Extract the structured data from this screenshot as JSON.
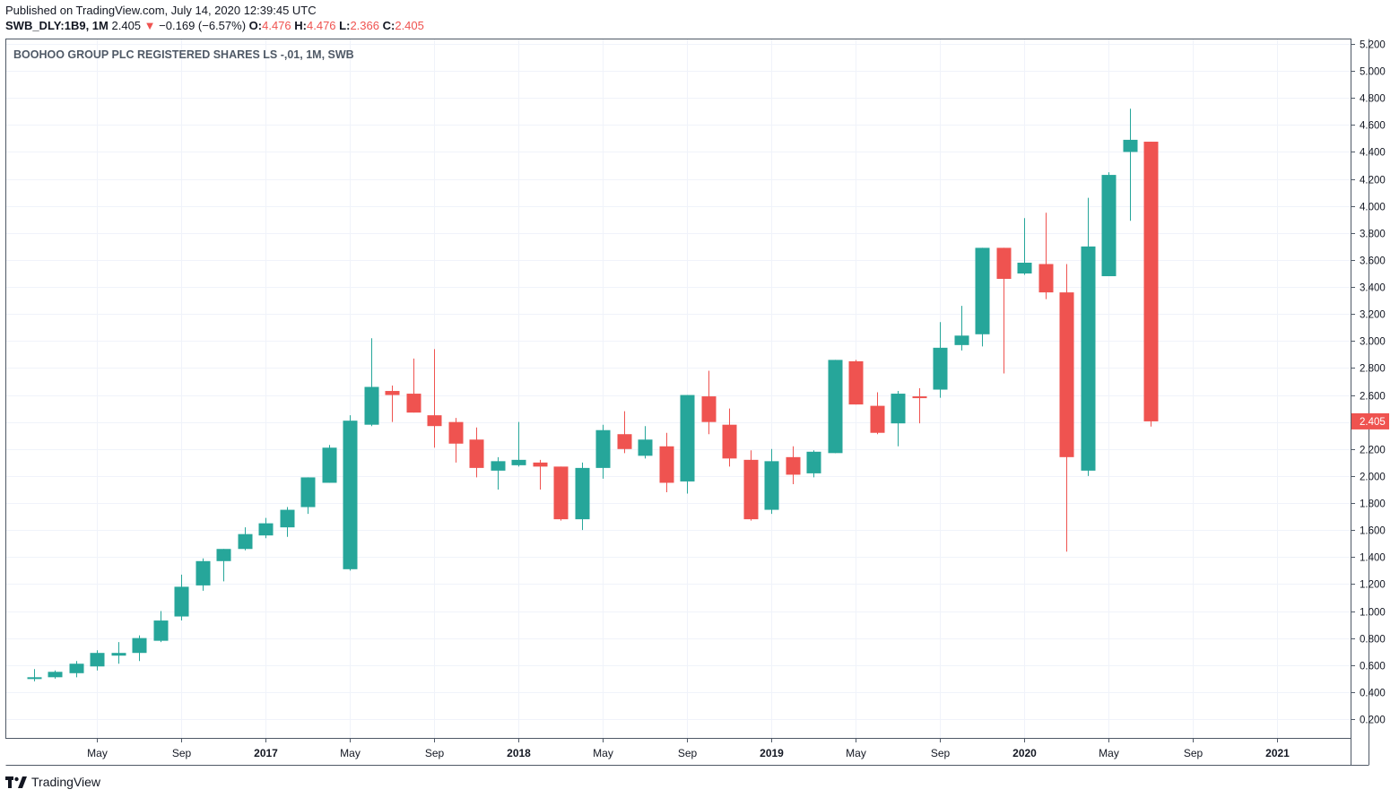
{
  "header": {
    "published": "Published on TradingView.com, July 14, 2020 12:39:45 UTC",
    "symbol": "SWB_DLY:1B9, 1M",
    "last": "2.405",
    "change": "−0.169 (−6.57%)",
    "o_label": "O:",
    "o_value": "4.476",
    "h_label": "H:",
    "h_value": "4.476",
    "l_label": "L:",
    "l_value": "2.366",
    "c_label": "C:",
    "c_value": "2.405"
  },
  "footer": {
    "brand": "TradingView"
  },
  "colors": {
    "up": "#26a69a",
    "down": "#ef5350",
    "grid": "#f0f3fa",
    "axis": "#4f5966"
  },
  "chart_data": {
    "type": "candlestick",
    "title": "BOOHOO GROUP PLC REGISTERED SHARES LS -,01, 1M, SWB",
    "ylim": [
      0,
      5.3
    ],
    "y_ticks": [
      "0.200",
      "0.400",
      "0.600",
      "0.800",
      "1.000",
      "1.200",
      "1.400",
      "1.600",
      "1.800",
      "2.000",
      "2.200",
      "2.400",
      "2.600",
      "2.800",
      "3.000",
      "3.200",
      "3.400",
      "3.600",
      "3.800",
      "4.000",
      "4.200",
      "4.400",
      "4.600",
      "4.800",
      "5.000",
      "5.200"
    ],
    "last_price_label": "2.405",
    "x_ticks": [
      {
        "label": "May",
        "month": "2016-05",
        "bold": false
      },
      {
        "label": "Sep",
        "month": "2016-09",
        "bold": false
      },
      {
        "label": "2017",
        "month": "2017-01",
        "bold": true
      },
      {
        "label": "May",
        "month": "2017-05",
        "bold": false
      },
      {
        "label": "Sep",
        "month": "2017-09",
        "bold": false
      },
      {
        "label": "2018",
        "month": "2018-01",
        "bold": true
      },
      {
        "label": "May",
        "month": "2018-05",
        "bold": false
      },
      {
        "label": "Sep",
        "month": "2018-09",
        "bold": false
      },
      {
        "label": "2019",
        "month": "2019-01",
        "bold": true
      },
      {
        "label": "May",
        "month": "2019-05",
        "bold": false
      },
      {
        "label": "Sep",
        "month": "2019-09",
        "bold": false
      },
      {
        "label": "2020",
        "month": "2020-01",
        "bold": true
      },
      {
        "label": "May",
        "month": "2020-05",
        "bold": false
      },
      {
        "label": "Sep",
        "month": "2020-09",
        "bold": false
      },
      {
        "label": "2021",
        "month": "2021-01",
        "bold": true
      }
    ],
    "x_range": [
      "2016-01",
      "2021-05"
    ],
    "candles": [
      {
        "month": "2016-02",
        "o": 0.5,
        "h": 0.57,
        "l": 0.48,
        "c": 0.51
      },
      {
        "month": "2016-03",
        "o": 0.51,
        "h": 0.56,
        "l": 0.5,
        "c": 0.55
      },
      {
        "month": "2016-04",
        "o": 0.54,
        "h": 0.63,
        "l": 0.51,
        "c": 0.61
      },
      {
        "month": "2016-05",
        "o": 0.59,
        "h": 0.71,
        "l": 0.56,
        "c": 0.69
      },
      {
        "month": "2016-06",
        "o": 0.67,
        "h": 0.77,
        "l": 0.61,
        "c": 0.69
      },
      {
        "month": "2016-07",
        "o": 0.69,
        "h": 0.82,
        "l": 0.63,
        "c": 0.8
      },
      {
        "month": "2016-08",
        "o": 0.78,
        "h": 1.0,
        "l": 0.77,
        "c": 0.93
      },
      {
        "month": "2016-09",
        "o": 0.96,
        "h": 1.27,
        "l": 0.93,
        "c": 1.18
      },
      {
        "month": "2016-10",
        "o": 1.19,
        "h": 1.39,
        "l": 1.15,
        "c": 1.37
      },
      {
        "month": "2016-11",
        "o": 1.37,
        "h": 1.46,
        "l": 1.22,
        "c": 1.46
      },
      {
        "month": "2016-12",
        "o": 1.46,
        "h": 1.62,
        "l": 1.45,
        "c": 1.57
      },
      {
        "month": "2017-01",
        "o": 1.56,
        "h": 1.69,
        "l": 1.54,
        "c": 1.65
      },
      {
        "month": "2017-02",
        "o": 1.62,
        "h": 1.77,
        "l": 1.55,
        "c": 1.75
      },
      {
        "month": "2017-03",
        "o": 1.77,
        "h": 1.99,
        "l": 1.72,
        "c": 1.99
      },
      {
        "month": "2017-04",
        "o": 1.95,
        "h": 2.23,
        "l": 1.95,
        "c": 2.21
      },
      {
        "month": "2017-05",
        "o": 1.31,
        "h": 2.45,
        "l": 1.3,
        "c": 2.41
      },
      {
        "month": "2017-06",
        "o": 2.38,
        "h": 3.02,
        "l": 2.37,
        "c": 2.66
      },
      {
        "month": "2017-07",
        "o": 2.63,
        "h": 2.67,
        "l": 2.4,
        "c": 2.6
      },
      {
        "month": "2017-08",
        "o": 2.61,
        "h": 2.87,
        "l": 2.47,
        "c": 2.47
      },
      {
        "month": "2017-09",
        "o": 2.45,
        "h": 2.94,
        "l": 2.21,
        "c": 2.37
      },
      {
        "month": "2017-10",
        "o": 2.4,
        "h": 2.43,
        "l": 2.1,
        "c": 2.24
      },
      {
        "month": "2017-11",
        "o": 2.27,
        "h": 2.36,
        "l": 1.99,
        "c": 2.06
      },
      {
        "month": "2017-12",
        "o": 2.04,
        "h": 2.14,
        "l": 1.9,
        "c": 2.11
      },
      {
        "month": "2018-01",
        "o": 2.08,
        "h": 2.4,
        "l": 2.07,
        "c": 2.12
      },
      {
        "month": "2018-02",
        "o": 2.1,
        "h": 2.12,
        "l": 1.9,
        "c": 2.07
      },
      {
        "month": "2018-03",
        "o": 2.07,
        "h": 2.07,
        "l": 1.67,
        "c": 1.68
      },
      {
        "month": "2018-04",
        "o": 1.68,
        "h": 2.1,
        "l": 1.6,
        "c": 2.06
      },
      {
        "month": "2018-05",
        "o": 2.06,
        "h": 2.38,
        "l": 1.98,
        "c": 2.34
      },
      {
        "month": "2018-06",
        "o": 2.31,
        "h": 2.48,
        "l": 2.17,
        "c": 2.2
      },
      {
        "month": "2018-07",
        "o": 2.15,
        "h": 2.37,
        "l": 2.13,
        "c": 2.27
      },
      {
        "month": "2018-08",
        "o": 2.22,
        "h": 2.32,
        "l": 1.88,
        "c": 1.95
      },
      {
        "month": "2018-09",
        "o": 1.96,
        "h": 2.6,
        "l": 1.87,
        "c": 2.6
      },
      {
        "month": "2018-10",
        "o": 2.59,
        "h": 2.78,
        "l": 2.31,
        "c": 2.4
      },
      {
        "month": "2018-11",
        "o": 2.38,
        "h": 2.5,
        "l": 2.07,
        "c": 2.13
      },
      {
        "month": "2018-12",
        "o": 2.12,
        "h": 2.19,
        "l": 1.67,
        "c": 1.68
      },
      {
        "month": "2019-01",
        "o": 1.75,
        "h": 2.2,
        "l": 1.72,
        "c": 2.11
      },
      {
        "month": "2019-02",
        "o": 2.14,
        "h": 2.22,
        "l": 1.94,
        "c": 2.01
      },
      {
        "month": "2019-03",
        "o": 2.02,
        "h": 2.19,
        "l": 1.99,
        "c": 2.18
      },
      {
        "month": "2019-04",
        "o": 2.17,
        "h": 2.86,
        "l": 2.17,
        "c": 2.86
      },
      {
        "month": "2019-05",
        "o": 2.85,
        "h": 2.86,
        "l": 2.53,
        "c": 2.53
      },
      {
        "month": "2019-06",
        "o": 2.52,
        "h": 2.62,
        "l": 2.31,
        "c": 2.32
      },
      {
        "month": "2019-07",
        "o": 2.39,
        "h": 2.63,
        "l": 2.22,
        "c": 2.61
      },
      {
        "month": "2019-08",
        "o": 2.59,
        "h": 2.65,
        "l": 2.39,
        "c": 2.58
      },
      {
        "month": "2019-09",
        "o": 2.64,
        "h": 3.14,
        "l": 2.58,
        "c": 2.95
      },
      {
        "month": "2019-10",
        "o": 2.97,
        "h": 3.26,
        "l": 2.93,
        "c": 3.04
      },
      {
        "month": "2019-11",
        "o": 3.05,
        "h": 3.69,
        "l": 2.96,
        "c": 3.69
      },
      {
        "month": "2019-12",
        "o": 3.69,
        "h": 3.69,
        "l": 2.76,
        "c": 3.46
      },
      {
        "month": "2020-01",
        "o": 3.5,
        "h": 3.91,
        "l": 3.49,
        "c": 3.58
      },
      {
        "month": "2020-02",
        "o": 3.57,
        "h": 3.95,
        "l": 3.31,
        "c": 3.36
      },
      {
        "month": "2020-03",
        "o": 3.36,
        "h": 3.57,
        "l": 1.44,
        "c": 2.14
      },
      {
        "month": "2020-04",
        "o": 2.04,
        "h": 4.06,
        "l": 2.0,
        "c": 3.7
      },
      {
        "month": "2020-05",
        "o": 3.48,
        "h": 4.25,
        "l": 3.48,
        "c": 4.23
      },
      {
        "month": "2020-06",
        "o": 4.4,
        "h": 4.72,
        "l": 3.89,
        "c": 4.49
      },
      {
        "month": "2020-07",
        "o": 4.476,
        "h": 4.476,
        "l": 2.366,
        "c": 2.405
      }
    ]
  }
}
